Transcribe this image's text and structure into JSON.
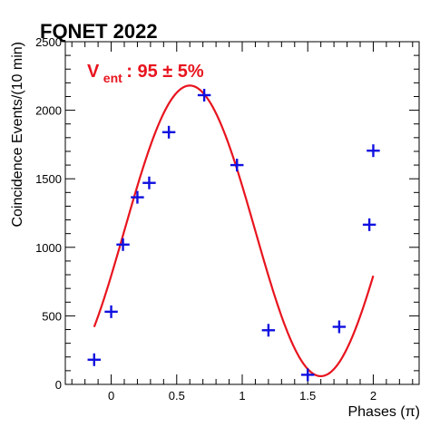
{
  "chart_data": {
    "type": "scatter",
    "title": "FQNET 2022",
    "xlabel": "Phases (π)",
    "ylabel": "Coincidence Events/(10 min)",
    "xlim": [
      -0.35,
      2.35
    ],
    "ylim": [
      0,
      2500
    ],
    "x_ticks": [
      0,
      0.5,
      1,
      1.5,
      2
    ],
    "x_tick_labels": [
      "0",
      "0.5",
      "1",
      "1.5",
      "2"
    ],
    "y_ticks": [
      0,
      500,
      1000,
      1500,
      2000,
      2500
    ],
    "y_tick_labels": [
      "0",
      "500",
      "1000",
      "1500",
      "2000",
      "2500"
    ],
    "annotation": {
      "symbol": "V",
      "subscript": "ent",
      "text": ": 95 ±  5%"
    },
    "grid": false,
    "points": {
      "color": "#1010e0",
      "x_error": 0.05,
      "x": [
        -0.13,
        0.0,
        0.09,
        0.2,
        0.29,
        0.44,
        0.71,
        0.96,
        1.2,
        1.5,
        1.74,
        1.97,
        2.0
      ],
      "y": [
        180,
        530,
        1020,
        1365,
        1470,
        1840,
        2110,
        1600,
        395,
        70,
        420,
        1165,
        1705
      ]
    },
    "fit": {
      "color": "#e8141e",
      "model": "A + B*cos(pi*(x - x0))",
      "A": 1120,
      "B": 1060,
      "x0": 0.6,
      "x_range": [
        -0.13,
        2.0
      ]
    }
  }
}
